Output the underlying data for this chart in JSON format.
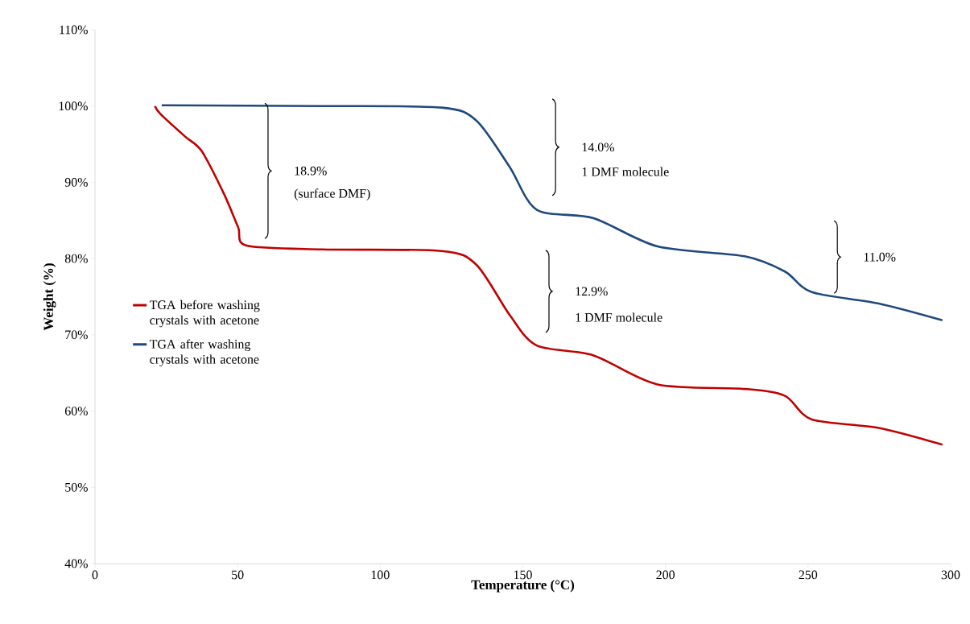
{
  "chart_data": {
    "type": "line",
    "xlabel": "Temperature (°C)",
    "ylabel": "Weight (%)",
    "xlim": [
      0,
      300
    ],
    "xticks": [
      0,
      50,
      100,
      150,
      200,
      250,
      300
    ],
    "ylim": [
      40,
      110
    ],
    "yticks": [
      {
        "value": 40,
        "label": "40%"
      },
      {
        "value": 50,
        "label": "50%"
      },
      {
        "value": 60,
        "label": "60%"
      },
      {
        "value": 70,
        "label": "70%"
      },
      {
        "value": 80,
        "label": "80%"
      },
      {
        "value": 90,
        "label": "90%"
      },
      {
        "value": 100,
        "label": "100%"
      },
      {
        "value": 110,
        "label": "110%"
      }
    ],
    "grid": false,
    "legend": "left",
    "marker": "none",
    "line_style": "solid",
    "series": [
      {
        "name": "TGA before washing crystals with acetone",
        "color": "#c00000",
        "x": [
          21,
          23.1,
          31.6,
          37.4,
          45.2,
          50.2,
          53.2,
          79.6,
          121.5,
          133.7,
          145.4,
          154.9,
          174.8,
          197.2,
          227.8,
          241.9,
          251.3,
          274.8,
          297.1
        ],
        "values": [
          100,
          98.9,
          96.0,
          94.1,
          88.5,
          84.1,
          81.7,
          81.2,
          81.0,
          79.2,
          72.6,
          68.6,
          67.3,
          63.5,
          62.9,
          62.0,
          58.9,
          57.8,
          55.6
        ]
      },
      {
        "name": "TGA after washing crystals with acetone",
        "color": "#1f497d",
        "x": [
          23.4,
          80,
          121.5,
          133.7,
          145.4,
          154.9,
          174.8,
          197.2,
          227.8,
          241.9,
          251.3,
          274.8,
          297.1
        ],
        "values": [
          100.1,
          100.0,
          99.8,
          98.1,
          92.0,
          86.4,
          85.3,
          81.6,
          80.3,
          78.3,
          75.6,
          74.1,
          71.9
        ]
      }
    ],
    "annotations": [
      "18.9%",
      "(surface DMF)",
      "14.0%",
      "1 DMF molecule",
      "12.9%",
      "1 DMF molecule",
      "11.0%"
    ]
  }
}
